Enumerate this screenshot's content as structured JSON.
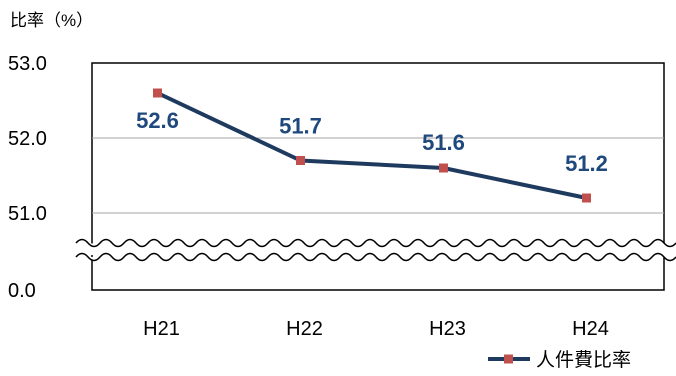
{
  "chart_data": {
    "type": "line",
    "ylabel": "比率（%）",
    "categories": [
      "H21",
      "H22",
      "H23",
      "H24"
    ],
    "series": [
      {
        "name": "人件費比率",
        "values": [
          52.6,
          51.7,
          51.6,
          51.2
        ]
      }
    ],
    "data_labels": [
      "52.6",
      "51.7",
      "51.6",
      "51.2"
    ],
    "y_tick_labels": [
      "0.0",
      "51.0",
      "52.0",
      "53.0"
    ],
    "ylim": [
      51.0,
      53.0
    ],
    "axis_break": {
      "between": [
        0.0,
        51.0
      ]
    },
    "grid": true,
    "legend_position": "bottom-right",
    "colors": {
      "line": "#1f3a5f",
      "marker": "#c0504d",
      "label": "#1f497d",
      "grid": "#a6a6a6",
      "frame": "#000000"
    }
  }
}
